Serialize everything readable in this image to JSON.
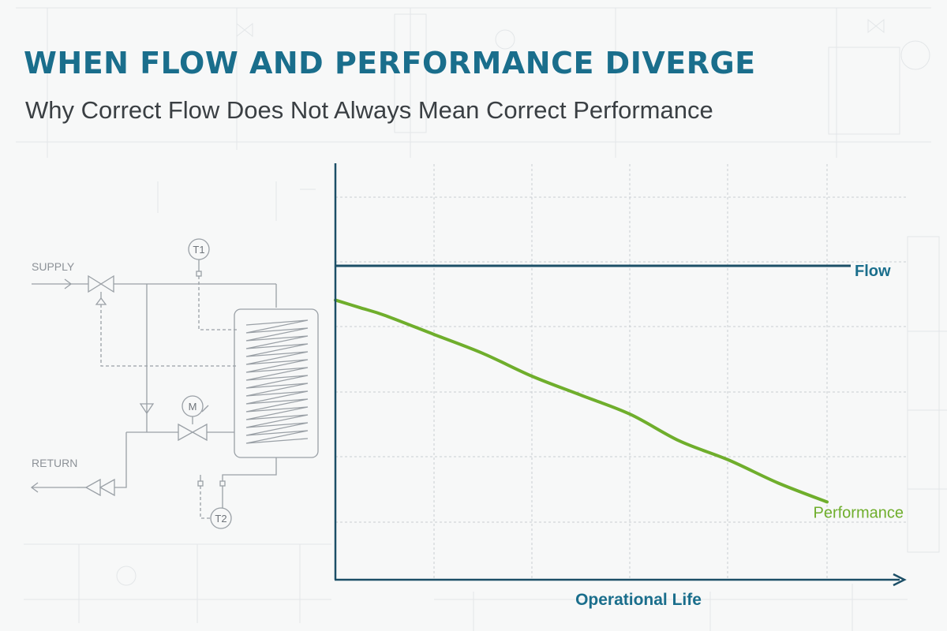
{
  "header": {
    "title": "WHEN FLOW AND PERFORMANCE DIVERGE",
    "subtitle": "Why Correct Flow Does Not Always Mean Correct Performance"
  },
  "schematic": {
    "supply_label": "SUPPLY",
    "return_label": "RETURN",
    "sensor_t1": "T1",
    "sensor_t2": "T2",
    "motor_label": "M"
  },
  "colors": {
    "title": "#1a6e8c",
    "flow_line": "#1c4f67",
    "performance_line": "#6fae2c",
    "axis": "#1c4f67",
    "grid": "#c9ced2",
    "schematic_line": "#9aa0a6"
  },
  "chart_data": {
    "type": "line",
    "title": "",
    "xlabel": "Operational Life",
    "ylabel": "",
    "xlim": [
      0,
      10
    ],
    "ylim": [
      0,
      10
    ],
    "grid": true,
    "legend": "inline-right",
    "series": [
      {
        "name": "Flow",
        "x": [
          0,
          10
        ],
        "values": [
          8.2,
          8.2
        ]
      },
      {
        "name": "Performance",
        "x": [
          0,
          0.5,
          1,
          2,
          3,
          4,
          5,
          6,
          7,
          8,
          9,
          10
        ],
        "values": [
          7.3,
          7.1,
          6.9,
          6.4,
          5.9,
          5.3,
          4.8,
          4.3,
          3.6,
          3.1,
          2.5,
          2.0
        ]
      }
    ]
  }
}
